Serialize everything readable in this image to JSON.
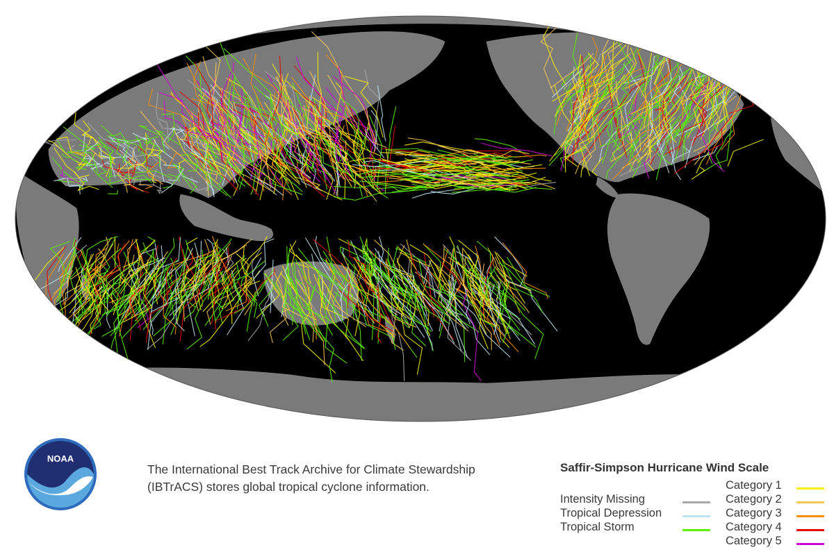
{
  "caption": {
    "line1": "The International Best Track Archive for Climate Stewardship",
    "line2": "(IBTrACS) stores global tropical cyclone information."
  },
  "logo": {
    "text": "NOAA",
    "icon": "noaa-logo"
  },
  "legend": {
    "title": "Saffir-Simpson Hurricane Wind Scale",
    "left_items": [
      {
        "label": "Intensity Missing",
        "color": "#a8a8a8"
      },
      {
        "label": "Tropical Depression",
        "color": "#bde3f2"
      },
      {
        "label": "Tropical Storm",
        "color": "#5cf000"
      }
    ],
    "right_items": [
      {
        "label": "Category 1",
        "color": "#f8f000"
      },
      {
        "label": "Category 2",
        "color": "#f8c850"
      },
      {
        "label": "Category 3",
        "color": "#f89000"
      },
      {
        "label": "Category 4",
        "color": "#e80000"
      },
      {
        "label": "Category 5",
        "color": "#d000d8"
      }
    ]
  },
  "map": {
    "projection": "Mollweide",
    "ocean_color": "#000000",
    "land_color": "#7a7a7a",
    "track_color_scale": [
      "#a8a8a8",
      "#bde3f2",
      "#5cf000",
      "#f8f000",
      "#f8c850",
      "#f89000",
      "#e80000",
      "#d000d8"
    ]
  }
}
